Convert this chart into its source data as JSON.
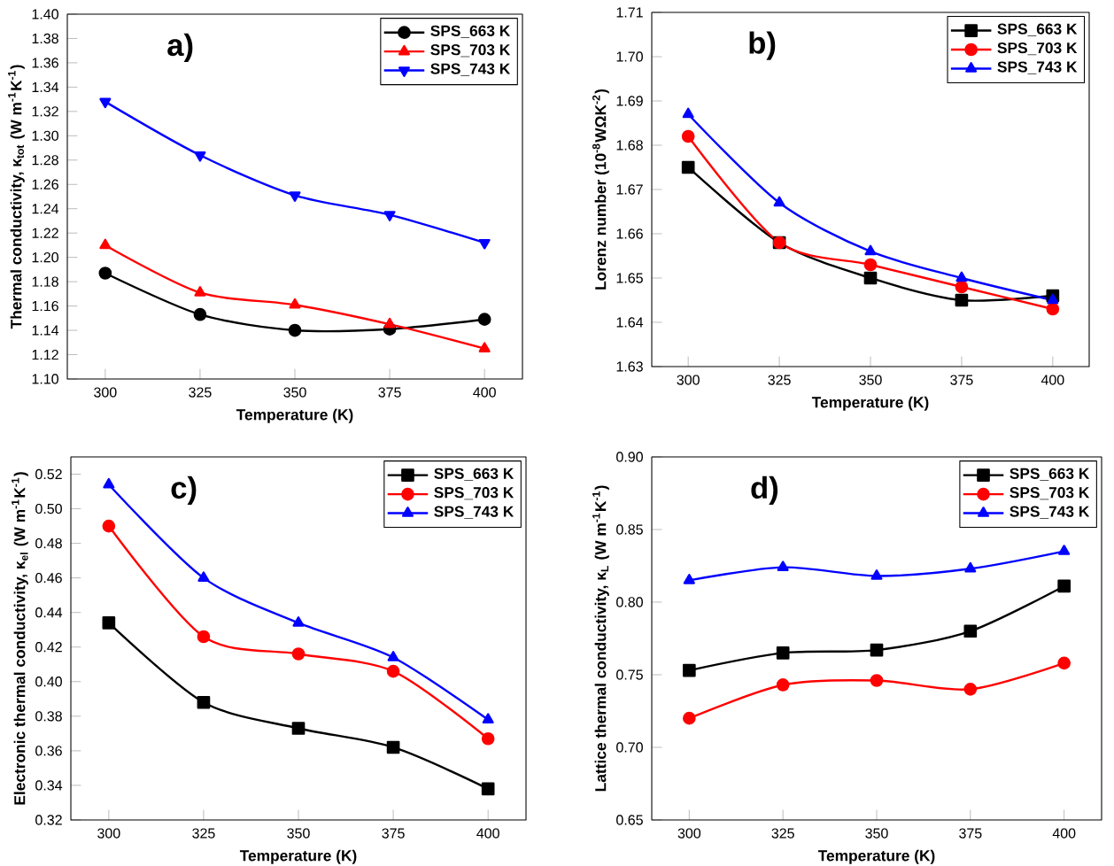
{
  "chart_data": [
    {
      "type": "line",
      "annotations": [
        "a)"
      ],
      "xlabel": "Temperature (K)",
      "ylabel": "Thermal conductivity,   κ$_{tot}$ (W m$^{-1}$K$^{-1}$)",
      "x": [
        300,
        325,
        350,
        375,
        400
      ],
      "xlim": [
        290,
        410
      ],
      "xticks": [
        300,
        325,
        350,
        375,
        400
      ],
      "ylim": [
        1.1,
        1.4
      ],
      "yticks": [
        {
          "value": 1.1,
          "label": "1.10"
        },
        {
          "value": 1.12,
          "label": "1.12"
        },
        {
          "value": 1.14,
          "label": "1.14"
        },
        {
          "value": 1.16,
          "label": "1.16"
        },
        {
          "value": 1.18,
          "label": "1.18"
        },
        {
          "value": 1.2,
          "label": "1.20"
        },
        {
          "value": 1.22,
          "label": "1.22"
        },
        {
          "value": 1.24,
          "label": "1.24"
        },
        {
          "value": 1.26,
          "label": "1.26"
        },
        {
          "value": 1.28,
          "label": "1.28"
        },
        {
          "value": 1.3,
          "label": "1.30"
        },
        {
          "value": 1.32,
          "label": "1.32"
        },
        {
          "value": 1.34,
          "label": "1.34"
        },
        {
          "value": 1.36,
          "label": "1.36"
        },
        {
          "value": 1.38,
          "label": "1.38"
        },
        {
          "value": 1.4,
          "label": "1.40"
        }
      ],
      "legend": "top right",
      "line_style": "solid",
      "series": [
        {
          "name": "SPS_663 K",
          "color": "#000000",
          "marker": "circle",
          "values": [
            1.187,
            1.153,
            1.14,
            1.141,
            1.149
          ]
        },
        {
          "name": "SPS_703 K",
          "color": "#ff0000",
          "marker": "triangle",
          "values": [
            1.21,
            1.171,
            1.161,
            1.145,
            1.125
          ]
        },
        {
          "name": "SPS_743 K",
          "color": "#0000ff",
          "marker": "triangle_down",
          "values": [
            1.328,
            1.284,
            1.251,
            1.235,
            1.212
          ]
        }
      ]
    },
    {
      "type": "line",
      "annotations": [
        "b)"
      ],
      "xlabel": "Temperature (K)",
      "ylabel": "Lorenz number   (10$^{-8}$WΩK$^{-2}$)",
      "x": [
        300,
        325,
        350,
        375,
        400
      ],
      "xlim": [
        290,
        410
      ],
      "xticks": [
        300,
        325,
        350,
        375,
        400
      ],
      "ylim": [
        1.63,
        1.71
      ],
      "yticks": [
        {
          "value": 1.63,
          "label": "1.63"
        },
        {
          "value": 1.64,
          "label": "1.64"
        },
        {
          "value": 1.65,
          "label": "1.65"
        },
        {
          "value": 1.66,
          "label": "1.66"
        },
        {
          "value": 1.67,
          "label": "1.67"
        },
        {
          "value": 1.68,
          "label": "1.68"
        },
        {
          "value": 1.69,
          "label": "1.69"
        },
        {
          "value": 1.7,
          "label": "1.70"
        },
        {
          "value": 1.71,
          "label": "1.71"
        }
      ],
      "legend": "top right",
      "line_style": "solid",
      "series": [
        {
          "name": "SPS_663 K",
          "color": "#000000",
          "marker": "square",
          "values": [
            1.675,
            1.658,
            1.65,
            1.645,
            1.646
          ]
        },
        {
          "name": "SPS_703 K",
          "color": "#ff0000",
          "marker": "circle",
          "values": [
            1.682,
            1.658,
            1.653,
            1.648,
            1.643
          ]
        },
        {
          "name": "SPS_743 K",
          "color": "#0000ff",
          "marker": "triangle",
          "values": [
            1.687,
            1.667,
            1.656,
            1.65,
            1.645
          ]
        }
      ]
    },
    {
      "type": "line",
      "annotations": [
        "c)"
      ],
      "xlabel": "Temperature (K)",
      "ylabel": "Electronic thermal conductivity,   κ$_{el}$ (W m$^{-1}$K$^{-1}$)",
      "x": [
        300,
        325,
        350,
        375,
        400
      ],
      "xlim": [
        290,
        410
      ],
      "xticks": [
        300,
        325,
        350,
        375,
        400
      ],
      "ylim": [
        0.32,
        0.53
      ],
      "yticks": [
        {
          "value": 0.32,
          "label": "0.32"
        },
        {
          "value": 0.34,
          "label": "0.34"
        },
        {
          "value": 0.36,
          "label": "0.36"
        },
        {
          "value": 0.38,
          "label": "0.38"
        },
        {
          "value": 0.4,
          "label": "0.40"
        },
        {
          "value": 0.42,
          "label": "0.42"
        },
        {
          "value": 0.44,
          "label": "0.44"
        },
        {
          "value": 0.46,
          "label": "0.46"
        },
        {
          "value": 0.48,
          "label": "0.48"
        },
        {
          "value": 0.5,
          "label": "0.50"
        },
        {
          "value": 0.52,
          "label": "0.52"
        }
      ],
      "legend": "top right",
      "line_style": "solid",
      "series": [
        {
          "name": "SPS_663 K",
          "color": "#000000",
          "marker": "square",
          "values": [
            0.434,
            0.388,
            0.373,
            0.362,
            0.338
          ]
        },
        {
          "name": "SPS_703 K",
          "color": "#ff0000",
          "marker": "circle",
          "values": [
            0.49,
            0.426,
            0.416,
            0.406,
            0.367
          ]
        },
        {
          "name": "SPS_743 K",
          "color": "#0000ff",
          "marker": "triangle",
          "values": [
            0.514,
            0.46,
            0.434,
            0.414,
            0.378
          ]
        }
      ]
    },
    {
      "type": "line",
      "annotations": [
        "d)"
      ],
      "xlabel": "Temperature (K)",
      "ylabel": "Lattice thermal conductivity,   κ$_{L}$ (W m$^{-1}$K$^{-1}$)",
      "x": [
        300,
        325,
        350,
        375,
        400
      ],
      "xlim": [
        290,
        410
      ],
      "xticks": [
        300,
        325,
        350,
        375,
        400
      ],
      "ylim": [
        0.65,
        0.9
      ],
      "yticks": [
        {
          "value": 0.65,
          "label": "0.65"
        },
        {
          "value": 0.7,
          "label": "0.70"
        },
        {
          "value": 0.75,
          "label": "0.75"
        },
        {
          "value": 0.8,
          "label": "0.80"
        },
        {
          "value": 0.85,
          "label": "0.85"
        },
        {
          "value": 0.9,
          "label": "0.90"
        }
      ],
      "legend": "top right",
      "line_style": "solid",
      "series": [
        {
          "name": "SPS_663 K",
          "color": "#000000",
          "marker": "square",
          "values": [
            0.753,
            0.765,
            0.767,
            0.78,
            0.811
          ]
        },
        {
          "name": "SPS_703 K",
          "color": "#ff0000",
          "marker": "circle",
          "values": [
            0.72,
            0.743,
            0.746,
            0.74,
            0.758
          ]
        },
        {
          "name": "SPS_743 K",
          "color": "#0000ff",
          "marker": "triangle",
          "values": [
            0.815,
            0.824,
            0.818,
            0.823,
            0.835
          ]
        }
      ]
    }
  ]
}
